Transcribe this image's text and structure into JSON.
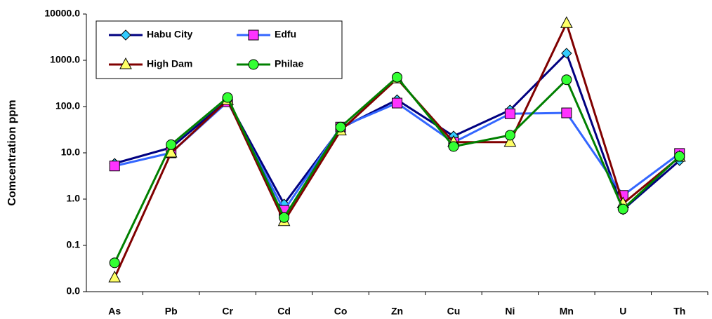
{
  "chart_data": {
    "type": "line",
    "y_label": "Comcentration ppm",
    "log_y": true,
    "categories": [
      "As",
      "Pb",
      "Cr",
      "Cd",
      "Co",
      "Zn",
      "Cu",
      "Ni",
      "Mn",
      "U",
      "Th"
    ],
    "ylim": [
      0.01,
      10000
    ],
    "yticks": [
      {
        "value": 0.01,
        "label": "0.0"
      },
      {
        "value": 0.1,
        "label": "0.1"
      },
      {
        "value": 1,
        "label": "1.0"
      },
      {
        "value": 10,
        "label": "10.0"
      },
      {
        "value": 100,
        "label": "100.0"
      },
      {
        "value": 1000,
        "label": "1000.0"
      },
      {
        "value": 10000,
        "label": "10000.0"
      }
    ],
    "legend": "top-left",
    "series": [
      {
        "name": "Habu City",
        "color": "#000080",
        "marker": "diamond",
        "marker_color": "#33ccff",
        "values": [
          5.9,
          13,
          137,
          0.78,
          34,
          140,
          23,
          84,
          1420,
          0.59,
          6.8
        ]
      },
      {
        "name": "Edfu",
        "color": "#3366ff",
        "marker": "square",
        "marker_color": "#ff33ff",
        "values": [
          5.2,
          10,
          127,
          0.57,
          36,
          119,
          16.8,
          70,
          73,
          1.2,
          9.7
        ]
      },
      {
        "name": "High Dam",
        "color": "#800000",
        "marker": "triangle",
        "marker_color": "#ffff66",
        "values": [
          0.02,
          10,
          137,
          0.33,
          30,
          400,
          17,
          17,
          6300,
          0.8,
          8.1
        ]
      },
      {
        "name": "Philae",
        "color": "#008000",
        "marker": "circle",
        "marker_color": "#33ff33",
        "values": [
          0.042,
          15,
          157,
          0.4,
          36,
          430,
          13.7,
          24,
          380,
          0.61,
          8.4
        ]
      }
    ]
  }
}
